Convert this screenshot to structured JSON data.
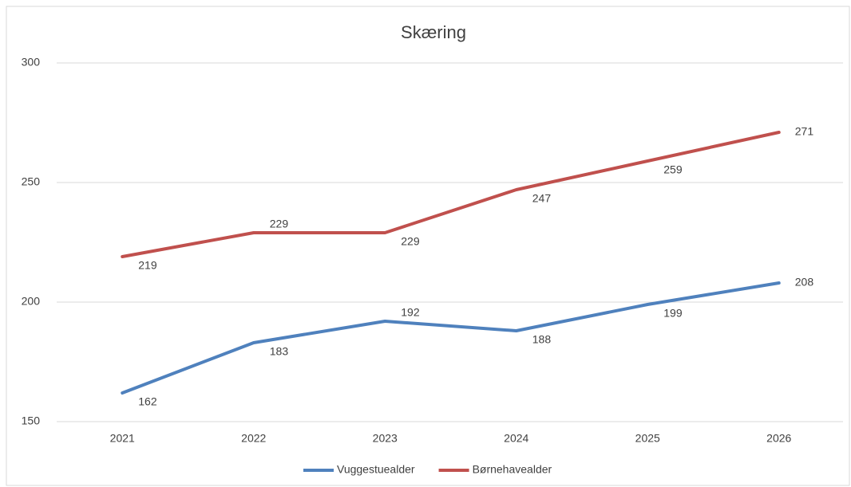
{
  "chart_data": {
    "type": "line",
    "title": "Skæring",
    "categories": [
      "2021",
      "2022",
      "2023",
      "2024",
      "2025",
      "2026"
    ],
    "series": [
      {
        "name": "Vuggestuealder",
        "color": "#4f81bd",
        "values": [
          162,
          183,
          192,
          188,
          199,
          208
        ]
      },
      {
        "name": "Børnehavealder",
        "color": "#c0504d",
        "values": [
          219,
          229,
          229,
          247,
          259,
          271
        ]
      }
    ],
    "ylim": [
      150,
      300
    ],
    "yticks": [
      150,
      200,
      250,
      300
    ],
    "grid": true,
    "legend": "bottom"
  }
}
